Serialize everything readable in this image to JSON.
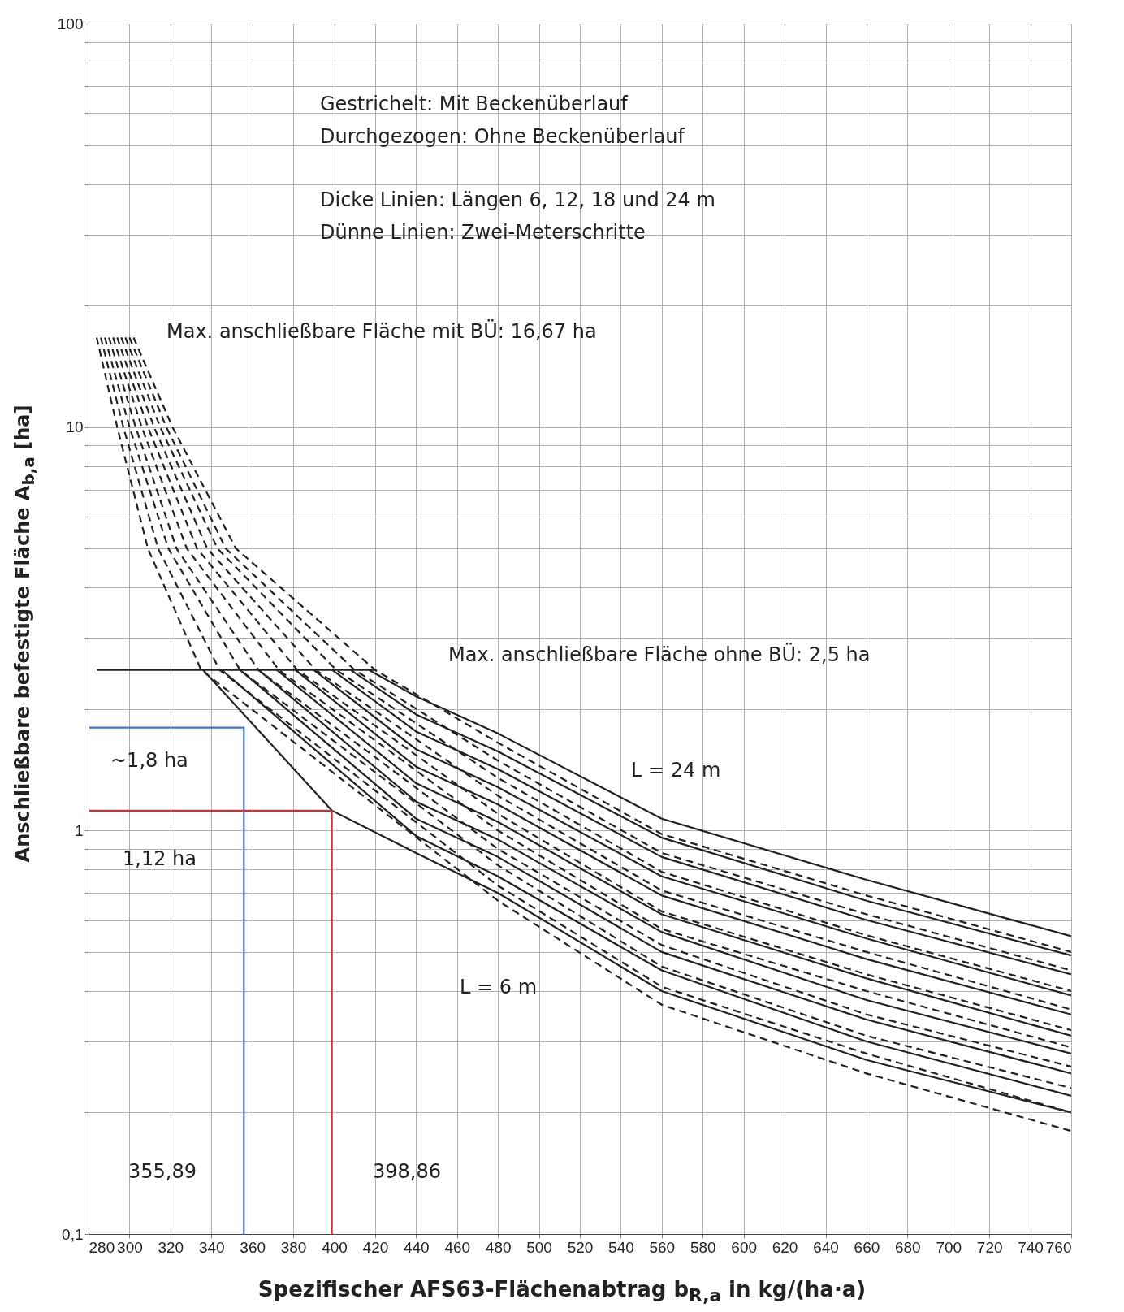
{
  "chart_data": {
    "type": "line",
    "xlabel": "Spezifischer AFS63-Flächenabtrag b$_{R,a}$ in kg/(ha·a)",
    "ylabel": "Anschließbare befestigte Fläche A$_{b,a}$ [ha]",
    "log": "y",
    "grid": true,
    "xlim": [
      280,
      760
    ],
    "ylim": [
      0.1,
      100
    ],
    "xticks": [
      280,
      300,
      320,
      340,
      360,
      380,
      400,
      420,
      440,
      460,
      480,
      500,
      520,
      540,
      560,
      580,
      600,
      620,
      640,
      660,
      680,
      700,
      720,
      740,
      760
    ],
    "yticks": [
      {
        "value": 0.1,
        "label": "0,1"
      },
      {
        "value": 0.2,
        "label": null
      },
      {
        "value": 0.3,
        "label": null
      },
      {
        "value": 0.4,
        "label": null
      },
      {
        "value": 0.5,
        "label": null
      },
      {
        "value": 0.6,
        "label": null
      },
      {
        "value": 0.7,
        "label": null
      },
      {
        "value": 0.8,
        "label": null
      },
      {
        "value": 0.9,
        "label": null
      },
      1,
      {
        "value": 2,
        "label": null
      },
      {
        "value": 3,
        "label": null
      },
      {
        "value": 4,
        "label": null
      },
      {
        "value": 5,
        "label": null
      },
      {
        "value": 6,
        "label": null
      },
      {
        "value": 7,
        "label": null
      },
      {
        "value": 8,
        "label": null
      },
      {
        "value": 9,
        "label": null
      },
      10,
      {
        "value": 20,
        "label": null
      },
      {
        "value": 30,
        "label": null
      },
      {
        "value": 40,
        "label": null
      },
      {
        "value": 50,
        "label": null
      },
      {
        "value": 60,
        "label": null
      },
      {
        "value": 70,
        "label": null
      },
      {
        "value": 80,
        "label": null
      },
      {
        "value": 90,
        "label": null
      },
      100
    ],
    "series": [
      {
        "color": "#222222",
        "line_style": "solid",
        "x": [
          336,
          399,
          440,
          480,
          560,
          660,
          760
        ],
        "values": [
          2.5,
          1.12,
          0.88,
          0.7,
          0.4,
          0.27,
          0.2
        ]
      },
      {
        "color": "#222222",
        "line_style": "solid",
        "x": [
          345,
          440,
          480,
          560,
          660,
          760
        ],
        "values": [
          2.5,
          0.97,
          0.77,
          0.45,
          0.3,
          0.22
        ]
      },
      {
        "color": "#222222",
        "line_style": "solid",
        "x": [
          354,
          440,
          480,
          560,
          660,
          760
        ],
        "values": [
          2.5,
          1.07,
          0.86,
          0.5,
          0.34,
          0.25
        ]
      },
      {
        "color": "#222222",
        "line_style": "solid",
        "x": [
          363,
          440,
          480,
          560,
          660,
          760
        ],
        "values": [
          2.5,
          1.18,
          0.95,
          0.56,
          0.38,
          0.28
        ]
      },
      {
        "color": "#222222",
        "line_style": "solid",
        "x": [
          372,
          440,
          480,
          560,
          660,
          760
        ],
        "values": [
          2.5,
          1.31,
          1.05,
          0.62,
          0.43,
          0.31
        ]
      },
      {
        "color": "#222222",
        "line_style": "solid",
        "x": [
          381,
          440,
          480,
          560,
          660,
          760
        ],
        "values": [
          2.5,
          1.44,
          1.16,
          0.69,
          0.48,
          0.35
        ]
      },
      {
        "color": "#222222",
        "line_style": "solid",
        "x": [
          390,
          440,
          480,
          560,
          660,
          760
        ],
        "values": [
          2.5,
          1.59,
          1.28,
          0.77,
          0.54,
          0.39
        ]
      },
      {
        "color": "#222222",
        "line_style": "solid",
        "x": [
          399,
          440,
          480,
          560,
          660,
          760
        ],
        "values": [
          2.5,
          1.76,
          1.42,
          0.86,
          0.6,
          0.44
        ]
      },
      {
        "color": "#222222",
        "line_style": "solid",
        "x": [
          408,
          440,
          480,
          560,
          660,
          760
        ],
        "values": [
          2.5,
          1.94,
          1.57,
          0.96,
          0.67,
          0.49
        ]
      },
      {
        "color": "#222222",
        "line_style": "solid",
        "x": [
          417,
          440,
          480,
          560,
          660,
          760
        ],
        "values": [
          2.5,
          2.15,
          1.74,
          1.07,
          0.755,
          0.547
        ]
      },
      {
        "color": "#222222",
        "line_style": "dashed",
        "x": [
          284,
          294,
          309,
          335,
          480,
          560,
          660,
          760
        ],
        "values": [
          16.67,
          10,
          5,
          2.5,
          0.67,
          0.37,
          0.25,
          0.18
        ]
      },
      {
        "color": "#222222",
        "line_style": "dashed",
        "x": [
          286,
          297,
          314,
          344,
          480,
          560,
          660,
          760
        ],
        "values": [
          16.67,
          10,
          5,
          2.5,
          0.73,
          0.41,
          0.28,
          0.2
        ]
      },
      {
        "color": "#222222",
        "line_style": "dashed",
        "x": [
          288,
          300,
          319,
          354,
          480,
          560,
          660,
          760
        ],
        "values": [
          16.67,
          10,
          5,
          2.5,
          0.82,
          0.46,
          0.31,
          0.23
        ]
      },
      {
        "color": "#222222",
        "line_style": "dashed",
        "x": [
          290,
          303,
          323,
          363,
          480,
          560,
          660,
          760
        ],
        "values": [
          16.67,
          10,
          5,
          2.5,
          0.9,
          0.52,
          0.35,
          0.26
        ]
      },
      {
        "color": "#222222",
        "line_style": "dashed",
        "x": [
          292,
          306,
          328,
          373,
          480,
          560,
          660,
          760
        ],
        "values": [
          16.67,
          10,
          5,
          2.5,
          1.0,
          0.57,
          0.4,
          0.29
        ]
      },
      {
        "color": "#222222",
        "line_style": "dashed",
        "x": [
          294,
          309,
          333,
          382,
          480,
          560,
          660,
          760
        ],
        "values": [
          16.67,
          10,
          5,
          2.5,
          1.1,
          0.63,
          0.44,
          0.32
        ]
      },
      {
        "color": "#222222",
        "line_style": "dashed",
        "x": [
          296,
          312,
          338,
          391,
          480,
          560,
          660,
          760
        ],
        "values": [
          16.67,
          10,
          5,
          2.5,
          1.22,
          0.71,
          0.5,
          0.36
        ]
      },
      {
        "color": "#222222",
        "line_style": "dashed",
        "x": [
          298,
          315,
          343,
          401,
          480,
          560,
          660,
          760
        ],
        "values": [
          16.67,
          10,
          5,
          2.5,
          1.35,
          0.79,
          0.55,
          0.4
        ]
      },
      {
        "color": "#222222",
        "line_style": "dashed",
        "x": [
          300,
          318,
          347,
          410,
          480,
          560,
          660,
          760
        ],
        "values": [
          16.67,
          10,
          5,
          2.5,
          1.49,
          0.88,
          0.62,
          0.45
        ]
      },
      {
        "color": "#222222",
        "line_style": "dashed",
        "x": [
          302,
          321,
          352,
          420,
          480,
          560,
          660,
          760
        ],
        "values": [
          16.67,
          10,
          5,
          2.5,
          1.65,
          0.98,
          0.69,
          0.5
        ]
      },
      {
        "color": "#222222",
        "line_style": "solid",
        "x": [
          284,
          420
        ],
        "values": [
          2.5,
          2.5
        ]
      },
      {
        "color": "#4472c4",
        "line_style": "solid",
        "x": [
          280,
          355.89,
          355.89
        ],
        "values": [
          1.8,
          1.8,
          0.1
        ]
      },
      {
        "color": "#d03030",
        "line_style": "solid",
        "x": [
          280,
          398.86,
          398.86
        ],
        "values": [
          1.12,
          1.12,
          0.1
        ]
      }
    ],
    "annotations": [
      "Gestrichelt: Mit Beckenüberlauf",
      "Durchgezogen: Ohne Beckenüberlauf",
      "Dicke Linien: Längen 6, 12, 18 und 24 m",
      "Dünne Linien: Zwei-Meterschritte",
      "Max. anschließbare Fläche mit BÜ: 16,67 ha",
      "Max. anschließbare Fläche ohne BÜ: 2,5 ha",
      "L = 24 m",
      "L = 6 m",
      "~1,8 ha",
      "1,12 ha",
      "355,89",
      "398,86"
    ]
  }
}
